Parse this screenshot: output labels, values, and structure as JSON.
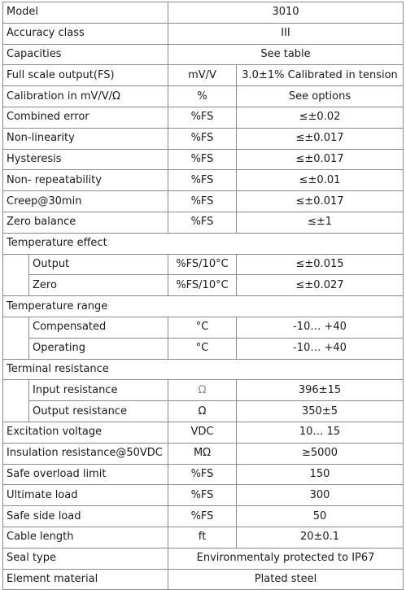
{
  "rows": [
    {
      "kind": "merged",
      "label": "Model",
      "value": "3010"
    },
    {
      "kind": "merged",
      "label": "Accuracy class",
      "value": "III"
    },
    {
      "kind": "merged",
      "label": "Capacities",
      "value": "See table"
    },
    {
      "kind": "unit",
      "label": "Full scale output(FS)",
      "unit": "mV/V",
      "value": "3.0±1%  Calibrated in tension"
    },
    {
      "kind": "unit",
      "label": "Calibration in mV/V/Ω",
      "unit": "%",
      "value": "See options"
    },
    {
      "kind": "unit",
      "label": "Combined error",
      "unit": "%FS",
      "value": "≤±0.02"
    },
    {
      "kind": "unit",
      "label": "Non-linearity",
      "unit": "%FS",
      "value": "≤±0.017"
    },
    {
      "kind": "unit",
      "label": "Hysteresis",
      "unit": "%FS",
      "value": "≤±0.017"
    },
    {
      "kind": "unit",
      "label": "Non- repeatability",
      "unit": "%FS",
      "value": "≤±0.01"
    },
    {
      "kind": "unit",
      "label": "Creep@30min",
      "unit": "%FS",
      "value": "≤±0.017"
    },
    {
      "kind": "unit",
      "label": "Zero balance",
      "unit": "%FS",
      "value": "≤±1"
    },
    {
      "kind": "group",
      "label": "Temperature effect",
      "children": [
        {
          "label": "Output",
          "unit": "%FS/10°C",
          "value": "≤±0.015"
        },
        {
          "label": "Zero",
          "unit": "%FS/10°C",
          "value": "≤±0.027"
        }
      ]
    },
    {
      "kind": "group",
      "label": "Temperature range",
      "children": [
        {
          "label": "Compensated",
          "unit": "°C",
          "value": "-10… +40"
        },
        {
          "label": "Operating",
          "unit": "°C",
          "value": "-10… +40"
        }
      ]
    },
    {
      "kind": "group",
      "label": "Terminal resistance",
      "children": [
        {
          "label": "Input resistance",
          "unit": "Ω",
          "value": "396±15",
          "unit_muted": true
        },
        {
          "label": "Output resistance",
          "unit": "Ω",
          "value": "350±5"
        }
      ]
    },
    {
      "kind": "unit",
      "label": "Excitation voltage",
      "unit": "VDC",
      "value": "10… 15"
    },
    {
      "kind": "unit",
      "label": "Insulation resistance@50VDC",
      "unit": "MΩ",
      "value": "≥5000"
    },
    {
      "kind": "unit",
      "label": "Safe overload limit",
      "unit": "%FS",
      "value": "150"
    },
    {
      "kind": "unit",
      "label": "Ultimate load",
      "unit": "%FS",
      "value": "300"
    },
    {
      "kind": "unit",
      "label": "Safe side load",
      "unit": "%FS",
      "value": "50"
    },
    {
      "kind": "unit",
      "label": "Cable length",
      "unit": "ft",
      "value": "20±0.1"
    },
    {
      "kind": "merged",
      "label": "Seal type",
      "value": "Environmentaly protected to IP67"
    },
    {
      "kind": "merged",
      "label": "Element material",
      "value": "Plated steel"
    }
  ]
}
